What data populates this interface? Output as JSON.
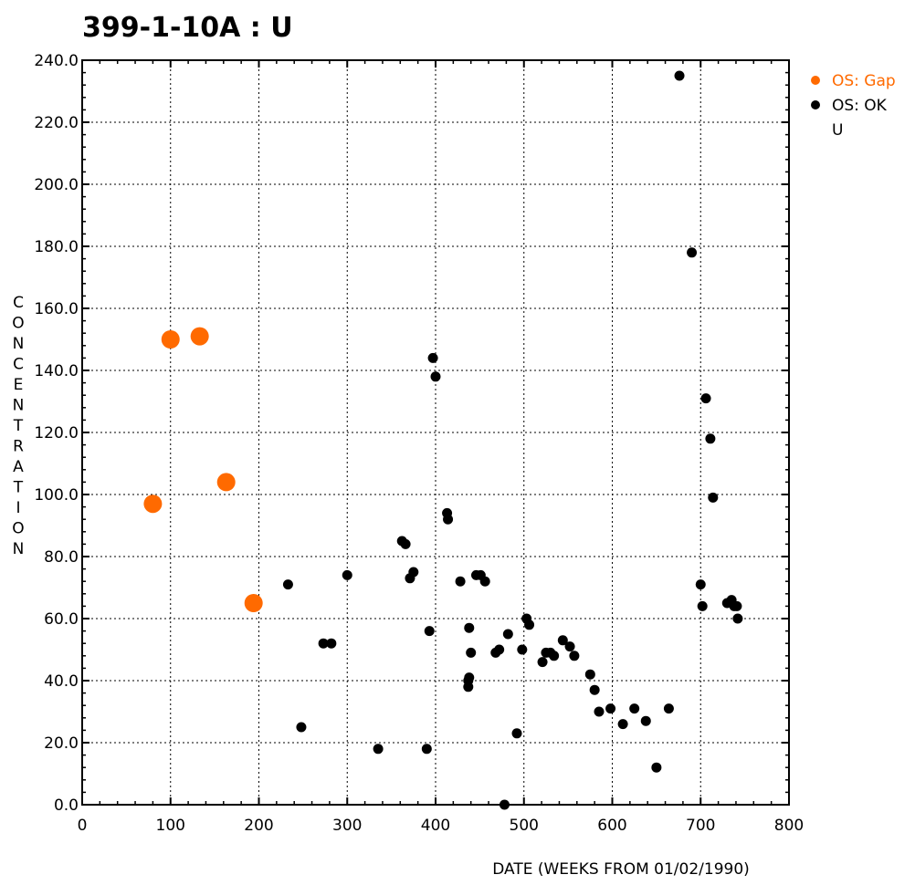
{
  "chart_data": {
    "type": "scatter",
    "title": "399-1-10A : U",
    "xlabel": "DATE (WEEKS FROM 01/02/1990)",
    "ylabel": "CONCENTRATION",
    "xlim": [
      0,
      800
    ],
    "ylim": [
      0,
      240
    ],
    "x_ticks": [
      0,
      100,
      200,
      300,
      400,
      500,
      600,
      700,
      800
    ],
    "y_ticks": [
      0,
      20,
      40,
      60,
      80,
      100,
      120,
      140,
      160,
      180,
      200,
      220,
      240
    ],
    "x_tick_labels": [
      "0",
      "100",
      "200",
      "300",
      "400",
      "500",
      "600",
      "700",
      "800"
    ],
    "y_tick_labels": [
      "0.0",
      "20.0",
      "40.0",
      "60.0",
      "80.0",
      "100.0",
      "120.0",
      "140.0",
      "160.0",
      "180.0",
      "200.0",
      "220.0",
      "240.0"
    ],
    "grid": true,
    "legend_position": "right-top",
    "legend_extra": "U",
    "series": [
      {
        "name": "OS: Gap",
        "color": "#ff6a00",
        "marker": "large",
        "points": [
          [
            80,
            97
          ],
          [
            100,
            150
          ],
          [
            133,
            151
          ],
          [
            163,
            104
          ],
          [
            194,
            65
          ]
        ]
      },
      {
        "name": "OS: OK",
        "color": "#000000",
        "marker": "small",
        "points": [
          [
            233,
            71
          ],
          [
            248,
            25
          ],
          [
            273,
            52
          ],
          [
            282,
            52
          ],
          [
            300,
            74
          ],
          [
            335,
            18
          ],
          [
            362,
            85
          ],
          [
            366,
            84
          ],
          [
            371,
            73
          ],
          [
            375,
            75
          ],
          [
            390,
            18
          ],
          [
            393,
            56
          ],
          [
            397,
            144
          ],
          [
            400,
            138
          ],
          [
            413,
            94
          ],
          [
            414,
            92
          ],
          [
            428,
            72
          ],
          [
            437,
            38
          ],
          [
            437,
            40
          ],
          [
            438,
            41
          ],
          [
            438,
            57
          ],
          [
            440,
            49
          ],
          [
            446,
            74
          ],
          [
            451,
            74
          ],
          [
            456,
            72
          ],
          [
            468,
            49
          ],
          [
            472,
            50
          ],
          [
            478,
            0
          ],
          [
            482,
            55
          ],
          [
            492,
            23
          ],
          [
            498,
            50
          ],
          [
            503,
            60
          ],
          [
            506,
            58
          ],
          [
            521,
            46
          ],
          [
            525,
            49
          ],
          [
            530,
            49
          ],
          [
            534,
            48
          ],
          [
            544,
            53
          ],
          [
            552,
            51
          ],
          [
            557,
            48
          ],
          [
            575,
            42
          ],
          [
            580,
            37
          ],
          [
            585,
            30
          ],
          [
            598,
            31
          ],
          [
            612,
            26
          ],
          [
            625,
            31
          ],
          [
            638,
            27
          ],
          [
            650,
            12
          ],
          [
            664,
            31
          ],
          [
            676,
            235
          ],
          [
            690,
            178
          ],
          [
            700,
            71
          ],
          [
            702,
            64
          ],
          [
            706,
            131
          ],
          [
            711,
            118
          ],
          [
            714,
            99
          ],
          [
            730,
            65
          ],
          [
            735,
            66
          ],
          [
            738,
            64
          ],
          [
            741,
            64
          ],
          [
            742,
            60
          ]
        ]
      }
    ]
  }
}
